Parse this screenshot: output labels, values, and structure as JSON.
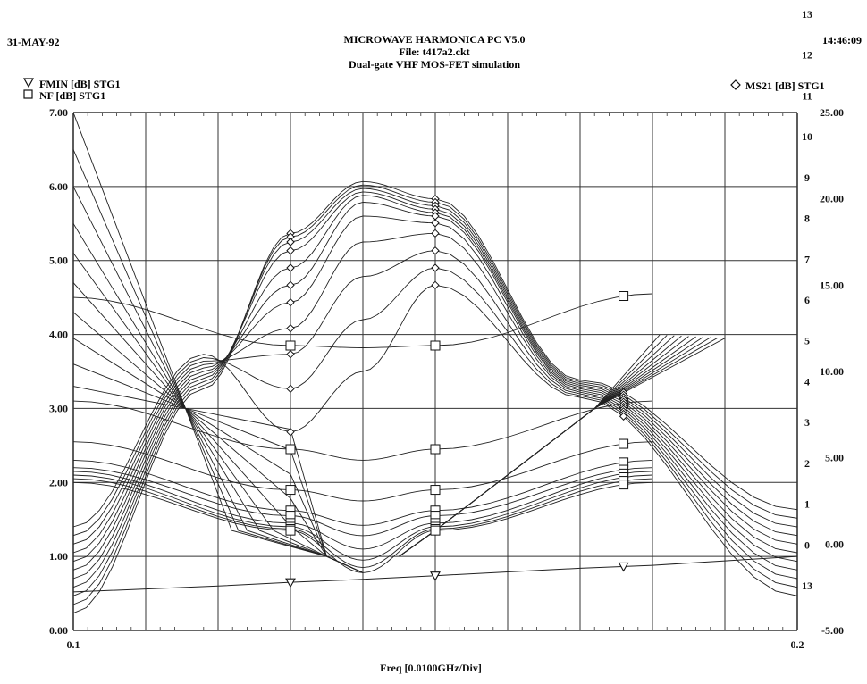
{
  "header": {
    "date": "31-MAY-92",
    "title": "MICROWAVE HARMONICA PC V5.0",
    "file": "File: t417a2.ckt",
    "subtitle": "Dual-gate VHF MOS-FET simulation",
    "time": "14:46:09"
  },
  "legend": {
    "fmin": "FMIN [dB] STG1",
    "nf": "NF [dB] STG1",
    "ms21": "MS21 [dB] STG1"
  },
  "chart_data": {
    "type": "line",
    "xlabel": "Freq [0.0100GHz/Div]",
    "x_tick_labels": [
      "0.1",
      "0.2"
    ],
    "xlim": [
      0.1,
      0.2
    ],
    "ylim_left": [
      0,
      7
    ],
    "ylim_right": [
      -5,
      25
    ],
    "y_left_ticks": [
      "0.00",
      "1.00",
      "2.00",
      "3.00",
      "4.00",
      "5.00",
      "6.00",
      "7.00"
    ],
    "y_right_ticks": [
      "-5.00",
      "0.00",
      "5.00",
      "10.00",
      "15.00",
      "20.00",
      "25.00"
    ],
    "grid": true,
    "right_curve_labels": [
      "13",
      "12",
      "11",
      "10",
      "9",
      "8",
      "7",
      "6",
      "5",
      "4",
      "3",
      "2",
      "1",
      "0",
      "13"
    ],
    "fmin": {
      "x": [
        0.1,
        0.12,
        0.13,
        0.14,
        0.15,
        0.16,
        0.17,
        0.18,
        0.19,
        0.2
      ],
      "y": [
        0.52,
        0.6,
        0.65,
        0.69,
        0.74,
        0.79,
        0.84,
        0.88,
        0.94,
        1.0
      ]
    },
    "nf_series": [
      {
        "y": [
          4.5,
          3.85,
          3.82,
          3.85,
          4.55
        ]
      },
      {
        "y": [
          3.1,
          2.45,
          2.3,
          2.45,
          3.1
        ]
      },
      {
        "y": [
          2.55,
          1.9,
          1.75,
          1.9,
          2.55
        ]
      },
      {
        "y": [
          2.3,
          1.62,
          1.42,
          1.62,
          2.3
        ]
      },
      {
        "y": [
          2.2,
          1.55,
          1.28,
          1.55,
          2.2
        ]
      },
      {
        "y": [
          2.15,
          1.45,
          1.1,
          1.45,
          2.15
        ]
      },
      {
        "y": [
          2.1,
          1.4,
          0.95,
          1.4,
          2.1
        ]
      },
      {
        "y": [
          2.05,
          1.37,
          0.85,
          1.37,
          2.05
        ]
      },
      {
        "y": [
          2.0,
          1.35,
          0.78,
          1.35,
          2.0
        ]
      }
    ],
    "nf_x": [
      0.1,
      0.13,
      0.14,
      0.15,
      0.18
    ],
    "nf_left_fan": {
      "top_y": [
        7.0,
        6.5,
        6.0,
        5.5,
        5.1,
        4.7,
        4.3,
        3.95,
        3.6,
        3.3
      ],
      "cross_x": 0.1155,
      "cross_y": 3.0
    },
    "nf_right_fan": {
      "end_y": [
        3.0,
        2.85,
        2.7,
        2.55,
        2.4,
        2.25,
        2.1,
        1.95,
        1.8,
        1.65
      ],
      "cross_x": 0.172,
      "cross_y": 3.0
    },
    "ms21_series": [
      {
        "y": [
          -4.0,
          9.0,
          18.0,
          21.0,
          20.0,
          9.5,
          2.0
        ]
      },
      {
        "y": [
          -3.5,
          9.2,
          17.8,
          20.8,
          19.8,
          9.4,
          1.5
        ]
      },
      {
        "y": [
          -3.0,
          9.4,
          17.5,
          20.6,
          19.6,
          9.3,
          1.0
        ]
      },
      {
        "y": [
          -2.5,
          9.6,
          17.0,
          20.4,
          19.4,
          9.2,
          0.5
        ]
      },
      {
        "y": [
          -2.0,
          9.8,
          16.0,
          20.2,
          19.2,
          9.1,
          0.0
        ]
      },
      {
        "y": [
          -1.5,
          10.0,
          15.0,
          19.8,
          19.0,
          9.0,
          -0.5
        ]
      },
      {
        "y": [
          -1.0,
          10.2,
          14.0,
          19.0,
          18.6,
          8.9,
          -1.0
        ]
      },
      {
        "y": [
          -0.5,
          10.4,
          12.5,
          17.5,
          18.0,
          8.8,
          -1.5
        ]
      },
      {
        "y": [
          0.0,
          10.6,
          11.0,
          15.5,
          17.0,
          8.7,
          -2.0
        ]
      },
      {
        "y": [
          0.5,
          10.8,
          9.0,
          13.0,
          16.0,
          8.6,
          -2.5
        ]
      },
      {
        "y": [
          1.0,
          11.0,
          6.5,
          10.0,
          15.0,
          8.5,
          -3.0
        ]
      }
    ],
    "ms21_x": [
      0.1,
      0.118,
      0.13,
      0.14,
      0.15,
      0.17,
      0.2
    ],
    "markers": {
      "fmin_x": [
        0.13,
        0.15,
        0.176
      ],
      "nf_x": [
        0.13,
        0.15,
        0.176
      ],
      "ms21_x": [
        0.13,
        0.15,
        0.176
      ]
    }
  }
}
